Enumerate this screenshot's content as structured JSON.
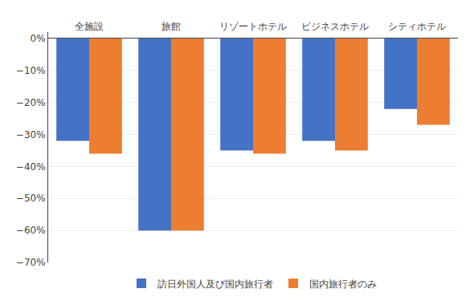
{
  "chart_data": {
    "type": "bar",
    "categories": [
      "全施設",
      "旅館",
      "リゾートホテル",
      "ビジネスホテル",
      "シティホテル"
    ],
    "series": [
      {
        "name": "訪日外国人及び国内旅行者",
        "color": "#4472C4",
        "values": [
          -32,
          -60,
          -35,
          -32,
          -22
        ]
      },
      {
        "name": "国内旅行者のみ",
        "color": "#ED7D31",
        "values": [
          -36,
          -60,
          -36,
          -35,
          -27
        ]
      }
    ],
    "ylim": [
      -70,
      2
    ],
    "yticks": [
      {
        "value": 0,
        "label": "0%"
      },
      {
        "value": -10,
        "label": "−10%"
      },
      {
        "value": -20,
        "label": "−20%"
      },
      {
        "value": -30,
        "label": "−30%"
      },
      {
        "value": -40,
        "label": "−40%"
      },
      {
        "value": -50,
        "label": "−50%"
      },
      {
        "value": -60,
        "label": "−60%"
      },
      {
        "value": -70,
        "label": "−70%"
      }
    ],
    "grid": true,
    "legend": "bottom"
  }
}
